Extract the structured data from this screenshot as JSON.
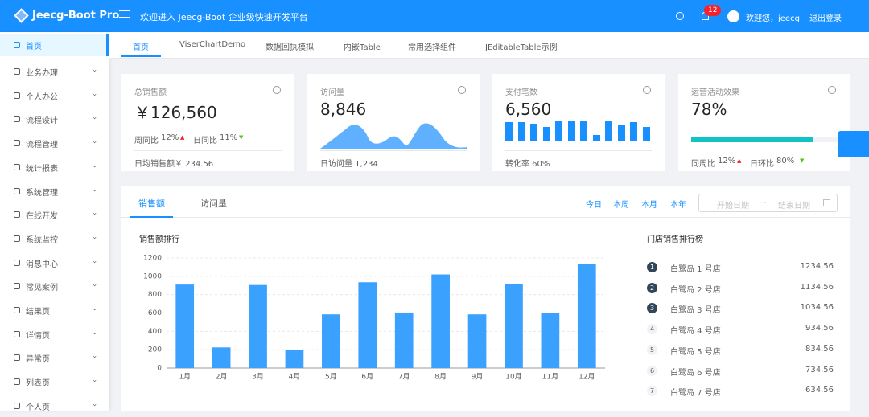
{
  "header": {
    "logo": "Jeecg-Boot Pro",
    "welcome": "欢迎进入 Jeecg-Boot 企业级快速开发平台",
    "badge": "12",
    "user": "欢迎您，jeecg",
    "logout": "退出登录"
  },
  "sidebar": [
    "首页",
    "业务办理",
    "个人办公",
    "流程设计",
    "流程管理",
    "统计报表",
    "系统管理",
    "在线开发",
    "系统监控",
    "消息中心",
    "常见案例",
    "结果页",
    "详情页",
    "异常页",
    "列表页",
    "个人页"
  ],
  "tabs": [
    "首页",
    "ViserChartDemo",
    "数据回执模拟",
    "内嵌Table",
    "常用选择组件",
    "JEditableTable示例"
  ],
  "cards": [
    {
      "title": "总销售额",
      "value": "￥126,560",
      "stats": [
        "周同比",
        "12%",
        "日同比",
        "11%"
      ],
      "footer": "日均销售额￥ 234.56"
    },
    {
      "title": "访问量",
      "value": "8,846",
      "footer": "日访问量 1,234"
    },
    {
      "title": "支付笔数",
      "value": "6,560",
      "footer": "转化率 60%"
    },
    {
      "title": "运营活动效果",
      "progress": {
        "value": 78,
        "label": "78%"
      },
      "stats": [
        "同周比",
        "12%",
        "日环比",
        "80%"
      ]
    }
  ],
  "panel": {
    "tabs": [
      "销售额",
      "访问量"
    ],
    "ranges": [
      "今日",
      "本周",
      "本月",
      "本年"
    ],
    "start": "开始日期",
    "sep": "~",
    "end": "结束日期"
  },
  "chart_data": {
    "type": "bar",
    "title": "销售额排行",
    "categories": [
      "1月",
      "2月",
      "3月",
      "4月",
      "5月",
      "6月",
      "7月",
      "8月",
      "9月",
      "10月",
      "11月",
      "12月"
    ],
    "values": [
      910,
      225,
      905,
      200,
      585,
      935,
      605,
      1020,
      585,
      920,
      600,
      1135
    ],
    "color": "#3ba1ff",
    "ylim": [
      0,
      1200
    ],
    "yticks": [
      0,
      200,
      400,
      600,
      800,
      1000,
      1200
    ],
    "grid": true
  },
  "ranking": {
    "title": "门店销售排行榜",
    "items": [
      {
        "rank": 1,
        "name": "白鹭岛 1 号店",
        "value": "1234.56"
      },
      {
        "rank": 2,
        "name": "白鹭岛 2 号店",
        "value": "1134.56"
      },
      {
        "rank": 3,
        "name": "白鹭岛 3 号店",
        "value": "1034.56"
      },
      {
        "rank": 4,
        "name": "白鹭岛 4 号店",
        "value": "934.56"
      },
      {
        "rank": 5,
        "name": "白鹭岛 5 号店",
        "value": "834.56"
      },
      {
        "rank": 6,
        "name": "白鹭岛 6 号店",
        "value": "734.56"
      },
      {
        "rank": 7,
        "name": "白鹭岛 7 号店",
        "value": "634.56"
      }
    ]
  }
}
